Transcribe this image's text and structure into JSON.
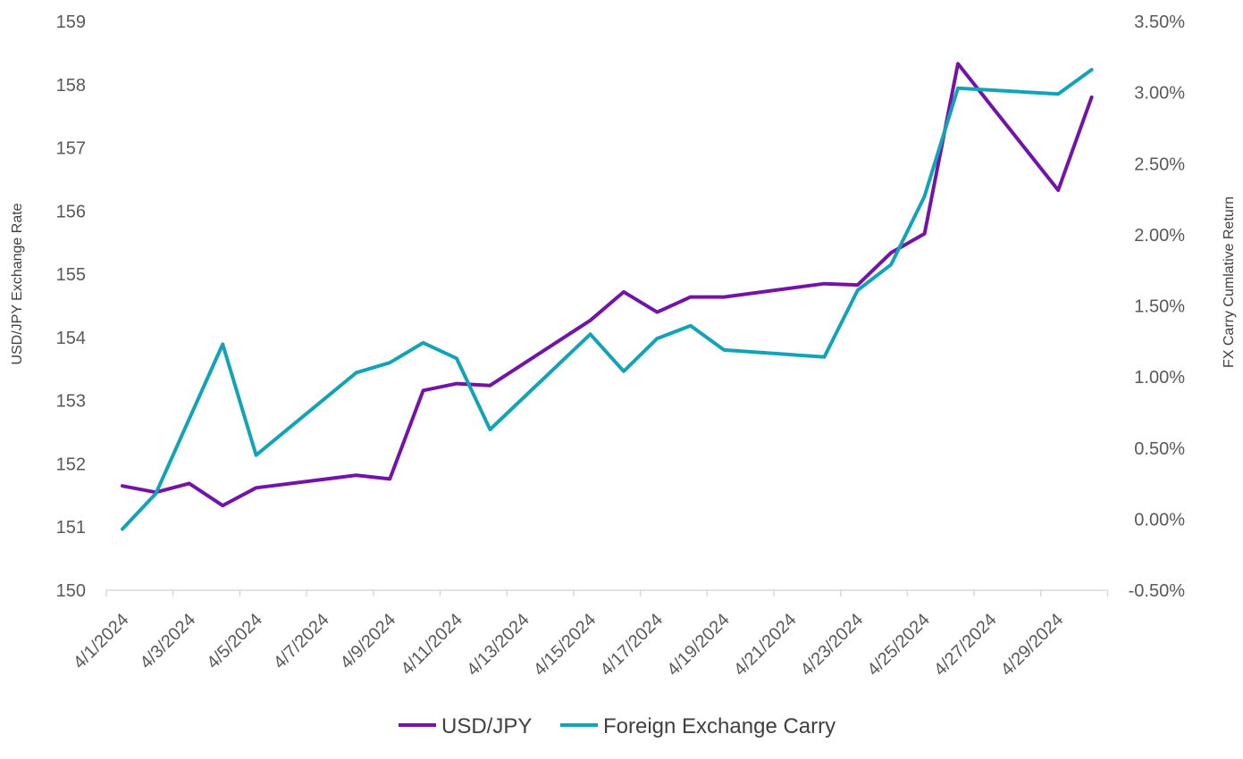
{
  "chart_data": {
    "type": "line",
    "title": "",
    "xlabel": "",
    "ylabel_left": "USD/JPY Exchange Rate",
    "ylabel_right": "FX Carry Cumlative Return",
    "x_ticks": [
      "4/1/2024",
      "4/3/2024",
      "4/5/2024",
      "4/7/2024",
      "4/9/2024",
      "4/11/2024",
      "4/13/2024",
      "4/15/2024",
      "4/17/2024",
      "4/19/2024",
      "4/21/2024",
      "4/23/2024",
      "4/25/2024",
      "4/27/2024",
      "4/29/2024"
    ],
    "left_axis": {
      "min": 150,
      "max": 159,
      "ticks": [
        "150",
        "151",
        "152",
        "153",
        "154",
        "155",
        "156",
        "157",
        "158",
        "159"
      ]
    },
    "right_axis": {
      "min": -0.5,
      "max": 3.5,
      "ticks": [
        "-0.50%",
        "0.00%",
        "0.50%",
        "1.00%",
        "1.50%",
        "2.00%",
        "2.50%",
        "3.00%",
        "3.50%"
      ]
    },
    "series": [
      {
        "name": "USD/JPY",
        "axis": "left",
        "color": "#7413A8",
        "points": [
          {
            "date": "4/1/2024",
            "value": 151.65
          },
          {
            "date": "4/2/2024",
            "value": 151.55
          },
          {
            "date": "4/3/2024",
            "value": 151.69
          },
          {
            "date": "4/4/2024",
            "value": 151.34
          },
          {
            "date": "4/5/2024",
            "value": 151.62
          },
          {
            "date": "4/8/2024",
            "value": 151.82
          },
          {
            "date": "4/9/2024",
            "value": 151.76
          },
          {
            "date": "4/10/2024",
            "value": 153.16
          },
          {
            "date": "4/11/2024",
            "value": 153.27
          },
          {
            "date": "4/12/2024",
            "value": 153.24
          },
          {
            "date": "4/15/2024",
            "value": 154.27
          },
          {
            "date": "4/16/2024",
            "value": 154.72
          },
          {
            "date": "4/17/2024",
            "value": 154.4
          },
          {
            "date": "4/18/2024",
            "value": 154.64
          },
          {
            "date": "4/19/2024",
            "value": 154.64
          },
          {
            "date": "4/22/2024",
            "value": 154.85
          },
          {
            "date": "4/23/2024",
            "value": 154.83
          },
          {
            "date": "4/24/2024",
            "value": 155.34
          },
          {
            "date": "4/25/2024",
            "value": 155.64
          },
          {
            "date": "4/26/2024",
            "value": 158.33
          },
          {
            "date": "4/29/2024",
            "value": 156.33
          },
          {
            "date": "4/30/2024",
            "value": 157.8
          }
        ]
      },
      {
        "name": "Foreign Exchange Carry",
        "axis": "right",
        "color": "#13A3B8",
        "points": [
          {
            "date": "4/1/2024",
            "value": -0.07
          },
          {
            "date": "4/2/2024",
            "value": 0.18
          },
          {
            "date": "4/4/2024",
            "value": 1.23
          },
          {
            "date": "4/5/2024",
            "value": 0.45
          },
          {
            "date": "4/8/2024",
            "value": 1.03
          },
          {
            "date": "4/9/2024",
            "value": 1.1
          },
          {
            "date": "4/10/2024",
            "value": 1.24
          },
          {
            "date": "4/11/2024",
            "value": 1.13
          },
          {
            "date": "4/12/2024",
            "value": 0.63
          },
          {
            "date": "4/15/2024",
            "value": 1.3
          },
          {
            "date": "4/16/2024",
            "value": 1.04
          },
          {
            "date": "4/17/2024",
            "value": 1.27
          },
          {
            "date": "4/18/2024",
            "value": 1.36
          },
          {
            "date": "4/19/2024",
            "value": 1.19
          },
          {
            "date": "4/22/2024",
            "value": 1.14
          },
          {
            "date": "4/23/2024",
            "value": 1.61
          },
          {
            "date": "4/24/2024",
            "value": 1.79
          },
          {
            "date": "4/25/2024",
            "value": 2.27
          },
          {
            "date": "4/26/2024",
            "value": 3.03
          },
          {
            "date": "4/29/2024",
            "value": 2.99
          },
          {
            "date": "4/30/2024",
            "value": 3.16
          }
        ]
      }
    ],
    "legend": {
      "position": "bottom",
      "items": [
        "USD/JPY",
        "Foreign Exchange Carry"
      ]
    },
    "grid": false
  }
}
